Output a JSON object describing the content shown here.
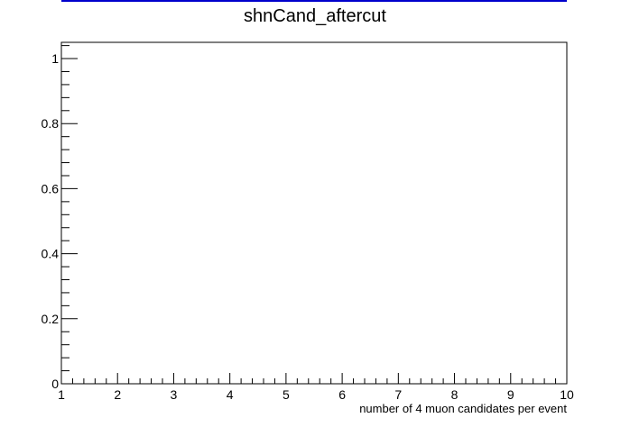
{
  "chart_data": {
    "type": "bar",
    "title": "shnCand_aftercut",
    "xlabel": "number of 4 muon candidates per event",
    "ylabel": "",
    "xlim": [
      1,
      10
    ],
    "ylim": [
      0,
      1.05
    ],
    "x_ticks": [
      1,
      2,
      3,
      4,
      5,
      6,
      7,
      8,
      9,
      10
    ],
    "x_tick_labels": [
      "1",
      "2",
      "3",
      "4",
      "5",
      "6",
      "7",
      "8",
      "9",
      "10"
    ],
    "y_ticks": [
      0,
      0.2,
      0.4,
      0.6,
      0.8,
      1
    ],
    "y_tick_labels": [
      "0",
      "0.2",
      "0.4",
      "0.6",
      "0.8",
      "1"
    ],
    "x_minor_per_major": 5,
    "y_minor_per_major": 5,
    "series": [],
    "grid": false,
    "colors": {
      "frame": "#000000",
      "top_line": "#0000cc",
      "background": "#ffffff"
    }
  }
}
